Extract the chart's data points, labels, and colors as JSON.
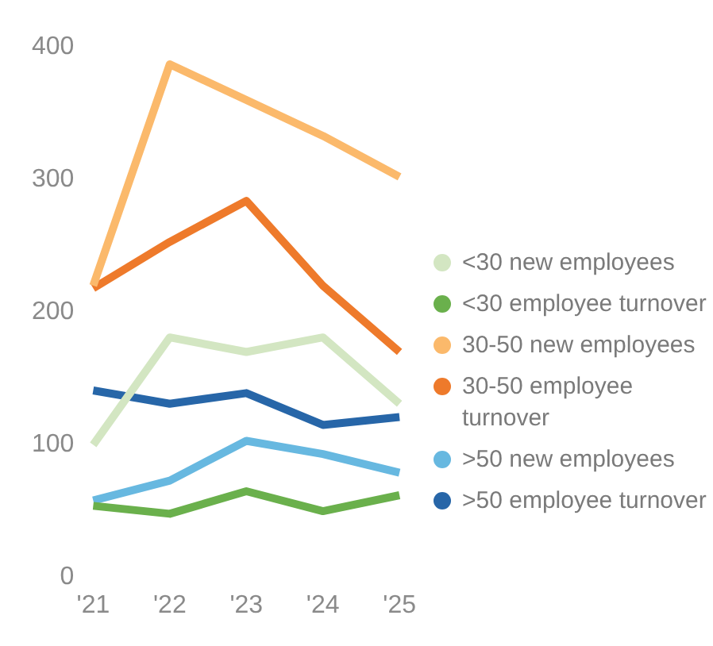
{
  "chart_data": {
    "type": "line",
    "categories": [
      "'21",
      "'22",
      "'23",
      "'24",
      "'25"
    ],
    "series": [
      {
        "name": "<30 new employees",
        "color": "#d3e6c2",
        "values": [
          100,
          181,
          170,
          181,
          131
        ]
      },
      {
        "name": "<30 employee turnover",
        "color": "#6ab04c",
        "values": [
          54,
          48,
          65,
          50,
          62
        ]
      },
      {
        "name": "30-50 new employees",
        "color": "#fbb96b",
        "values": [
          220,
          387,
          360,
          333,
          302
        ]
      },
      {
        "name": "30-50 employee turnover",
        "color": "#ee7a2b",
        "values": [
          218,
          253,
          284,
          220,
          170
        ]
      },
      {
        "name": ">50 new employees",
        "color": "#67b8e0",
        "values": [
          58,
          73,
          103,
          93,
          79
        ]
      },
      {
        "name": ">50 employee turnover",
        "color": "#2766a8",
        "values": [
          141,
          131,
          139,
          115,
          121
        ]
      }
    ],
    "ylim": [
      0,
      400
    ],
    "yticks": [
      0,
      100,
      200,
      300,
      400
    ],
    "grid": false,
    "legend": "right",
    "marker": "none",
    "line_style": "solid"
  }
}
